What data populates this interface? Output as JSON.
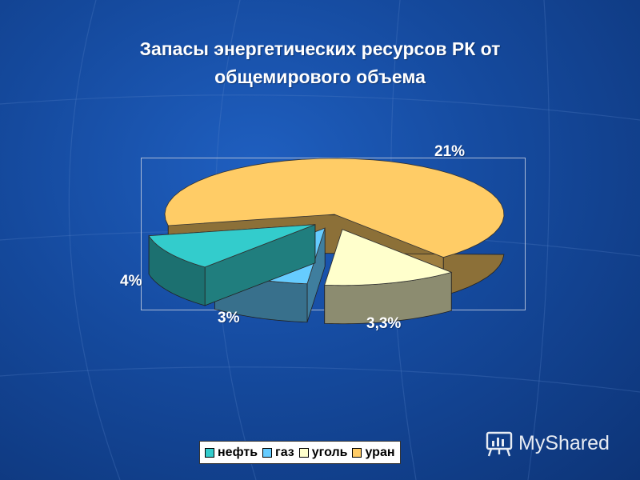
{
  "title_lines": [
    "Запасы энергетических ресурсов РК от",
    "общемирового объема"
  ],
  "chart_data": {
    "type": "pie",
    "title": "Запасы энергетических ресурсов РК от общемирового объема",
    "categories": [
      "нефть",
      "газ",
      "уголь",
      "уран"
    ],
    "values": [
      3.3,
      3,
      4,
      21
    ],
    "labels": [
      "3,3%",
      "3%",
      "4%",
      "21%"
    ],
    "colors": [
      "#33cccc",
      "#66ccff",
      "#ffffcc",
      "#ffcc66"
    ],
    "legend_position": "bottom",
    "exploded": true,
    "three_d": true
  },
  "legend": [
    {
      "label": "нефть",
      "color": "#33cccc"
    },
    {
      "label": "газ",
      "color": "#66ccff"
    },
    {
      "label": "уголь",
      "color": "#ffffcc"
    },
    {
      "label": "уран",
      "color": "#ffcc66"
    }
  ],
  "watermark": {
    "text": "MyShared",
    "icon": "presentation-board-icon"
  }
}
